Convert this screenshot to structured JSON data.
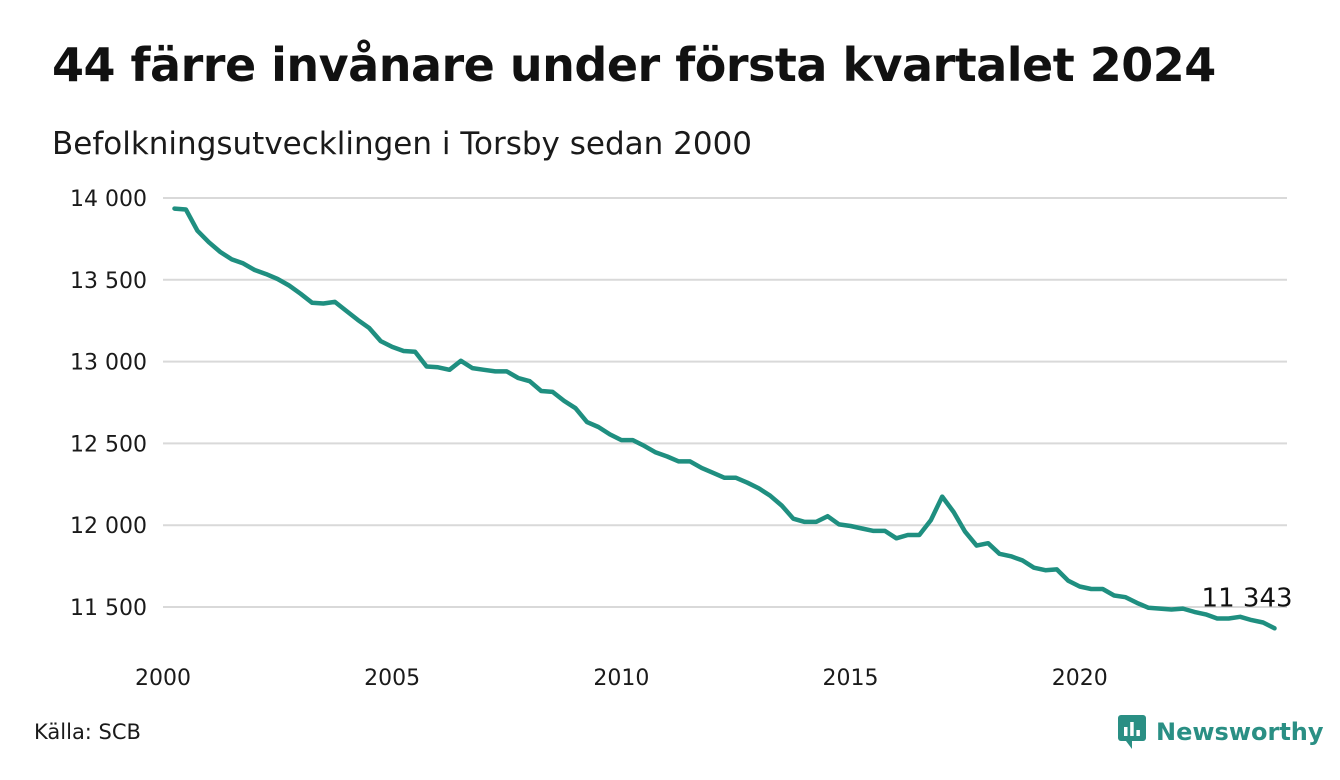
{
  "title": "44 färre invånare under första kvartalet 2024",
  "subtitle": "Befolkningsutvecklingen i Torsby sedan 2000",
  "source": "Källa: SCB",
  "brand": {
    "name": "Newsworthy",
    "icon": "newsworthy-logo-icon",
    "color": "#2a8f84"
  },
  "chart_data": {
    "type": "line",
    "title": "44 färre invånare under första kvartalet 2024",
    "subtitle": "Befolkningsutvecklingen i Torsby sedan 2000",
    "xlabel": "",
    "ylabel": "",
    "x_ticks": [
      2000,
      2005,
      2010,
      2015,
      2020
    ],
    "x_tick_labels": [
      "2000",
      "2005",
      "2010",
      "2015",
      "2020"
    ],
    "y_ticks": [
      11500,
      12000,
      12500,
      13000,
      13500,
      14000
    ],
    "y_tick_labels": [
      "11 500",
      "12 000",
      "12 500",
      "13 000",
      "13 500",
      "14 000"
    ],
    "xlim": [
      2000,
      2024.5
    ],
    "ylim": [
      11300,
      14000
    ],
    "grid": true,
    "line_color": "#1f8f80",
    "end_label": "11 343",
    "series": [
      {
        "x": [
          2000.25,
          2000.5,
          2000.75,
          2001.0,
          2001.25,
          2001.5,
          2001.75,
          2002.0,
          2002.25,
          2002.5,
          2002.75,
          2003.0,
          2003.25,
          2003.5,
          2003.75,
          2004.0,
          2004.25,
          2004.5,
          2004.75,
          2005.0,
          2005.25,
          2005.5,
          2005.75,
          2006.0,
          2006.25,
          2006.5,
          2006.75,
          2007.0,
          2007.25,
          2007.5,
          2007.75,
          2008.0,
          2008.25,
          2008.5,
          2008.75,
          2009.0,
          2009.25,
          2009.5,
          2009.75,
          2010.0,
          2010.25,
          2010.5,
          2010.75,
          2011.0,
          2011.25,
          2011.5,
          2011.75,
          2012.0,
          2012.25,
          2012.5,
          2012.75,
          2013.0,
          2013.25,
          2013.5,
          2013.75,
          2014.0,
          2014.25,
          2014.5,
          2014.75,
          2015.0,
          2015.25,
          2015.5,
          2015.75,
          2016.0,
          2016.25,
          2016.5,
          2016.75,
          2017.0,
          2017.25,
          2017.5,
          2017.75,
          2018.0,
          2018.25,
          2018.5,
          2018.75,
          2019.0,
          2019.25,
          2019.5,
          2019.75,
          2020.0,
          2020.25,
          2020.5,
          2020.75,
          2021.0,
          2021.25,
          2021.5,
          2021.75,
          2022.0,
          2022.25,
          2022.5,
          2022.75,
          2023.0,
          2023.25,
          2023.5,
          2023.75,
          2024.0,
          2024.25
        ],
        "values": [
          13935,
          13930,
          13800,
          13730,
          13670,
          13625,
          13600,
          13560,
          13535,
          13505,
          13465,
          13415,
          13360,
          13355,
          13365,
          13310,
          13255,
          13205,
          13125,
          13090,
          13065,
          13060,
          12970,
          12965,
          12950,
          13005,
          12960,
          12950,
          12940,
          12940,
          12900,
          12880,
          12820,
          12815,
          12760,
          12715,
          12630,
          12600,
          12555,
          12520,
          12520,
          12485,
          12445,
          12420,
          12390,
          12390,
          12350,
          12320,
          12290,
          12290,
          12260,
          12225,
          12180,
          12120,
          12040,
          12020,
          12020,
          12055,
          12005,
          11995,
          11980,
          11965,
          11965,
          11920,
          11940,
          11940,
          12030,
          12175,
          12080,
          11960,
          11875,
          11890,
          11825,
          11810,
          11785,
          11740,
          11725,
          11730,
          11660,
          11625,
          11610,
          11610,
          11570,
          11560,
          11525,
          11495,
          11490,
          11485,
          11490,
          11470,
          11455,
          11430,
          11430,
          11440,
          11420,
          11405,
          11370
        ]
      }
    ]
  }
}
